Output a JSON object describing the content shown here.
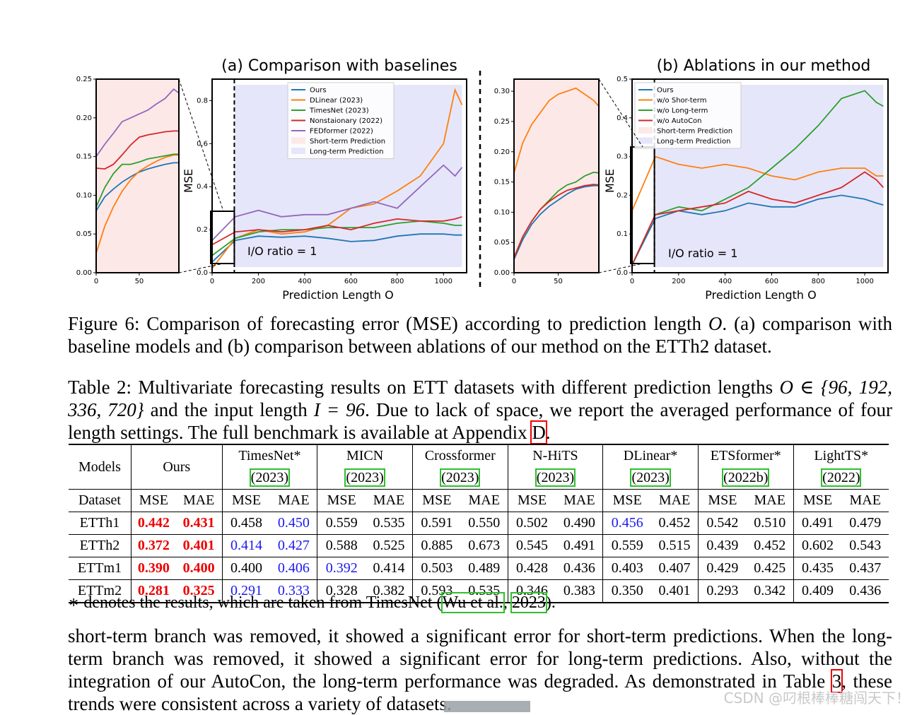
{
  "figure": {
    "title_a": "(a) Comparison with baselines",
    "title_b": "(b) Ablations in our method",
    "ylabel": "MSE",
    "xlabel": "Prediction Length O",
    "io_label": "I/O ratio = 1",
    "legend_a": [
      "Ours",
      "DLinear (2023)",
      "TimesNet (2023)",
      "Nonstaionary (2022)",
      "FEDformer (2022)",
      "Short-term Prediction",
      "Long-term Prediction"
    ],
    "legend_b": [
      "Ours",
      "w/o Shor-term",
      "w/o Long-term",
      "w/o AutoCon",
      "Short-term Prediction",
      "Long-term Prediction"
    ],
    "colors": {
      "ours": "#1f77b4",
      "dlinear": "#ff7f0e",
      "timesnet": "#2ca02c",
      "nonstat": "#d62728",
      "fedformer": "#9467bd",
      "short_bg": "#fde8e8",
      "long_bg": "#e6e6fa"
    }
  },
  "chart_data": [
    {
      "type": "line",
      "title": "(a) Comparison with baselines (zoom)",
      "xlabel": "",
      "ylabel": "",
      "xlim": [
        0,
        96
      ],
      "ylim": [
        0,
        0.25
      ],
      "xticks": [
        0,
        50
      ],
      "yticks": [
        0.0,
        0.05,
        0.1,
        0.15,
        0.2,
        0.25
      ],
      "x": [
        0,
        10,
        20,
        30,
        40,
        50,
        60,
        70,
        80,
        90,
        96
      ],
      "series": [
        {
          "name": "Ours",
          "color": "#1f77b4",
          "values": [
            0.08,
            0.098,
            0.108,
            0.117,
            0.124,
            0.13,
            0.134,
            0.137,
            0.14,
            0.142,
            0.142
          ]
        },
        {
          "name": "DLinear (2023)",
          "color": "#ff7f0e",
          "values": [
            0.025,
            0.06,
            0.085,
            0.105,
            0.12,
            0.131,
            0.138,
            0.144,
            0.149,
            0.152,
            0.152
          ]
        },
        {
          "name": "TimesNet (2023)",
          "color": "#2ca02c",
          "values": [
            0.085,
            0.11,
            0.128,
            0.14,
            0.14,
            0.143,
            0.147,
            0.149,
            0.151,
            0.153,
            0.153
          ]
        },
        {
          "name": "Nonstaionary (2022)",
          "color": "#d62728",
          "values": [
            0.135,
            0.134,
            0.14,
            0.152,
            0.165,
            0.175,
            0.178,
            0.18,
            0.182,
            0.183,
            0.183
          ]
        },
        {
          "name": "FEDformer (2022)",
          "color": "#9467bd",
          "values": [
            0.15,
            0.166,
            0.18,
            0.195,
            0.2,
            0.205,
            0.21,
            0.218,
            0.225,
            0.237,
            0.232
          ]
        }
      ]
    },
    {
      "type": "line",
      "title": "(a) Comparison with baselines",
      "xlabel": "Prediction Length O",
      "ylabel": "MSE",
      "xlim": [
        0,
        1100
      ],
      "ylim": [
        0,
        0.9
      ],
      "xticks": [
        0,
        200,
        400,
        600,
        800,
        1000
      ],
      "yticks": [
        0.0,
        0.2,
        0.4,
        0.6,
        0.8
      ],
      "x": [
        0,
        100,
        200,
        300,
        400,
        500,
        600,
        700,
        800,
        900,
        1000,
        1050,
        1080
      ],
      "series": [
        {
          "name": "Ours",
          "color": "#1f77b4",
          "values": [
            0.05,
            0.15,
            0.17,
            0.165,
            0.17,
            0.16,
            0.145,
            0.15,
            0.17,
            0.18,
            0.18,
            0.175,
            0.175
          ]
        },
        {
          "name": "DLinear (2023)",
          "color": "#ff7f0e",
          "values": [
            0.02,
            0.16,
            0.2,
            0.18,
            0.19,
            0.22,
            0.3,
            0.32,
            0.38,
            0.45,
            0.6,
            0.85,
            0.78
          ]
        },
        {
          "name": "TimesNet (2023)",
          "color": "#2ca02c",
          "values": [
            0.08,
            0.16,
            0.19,
            0.2,
            0.2,
            0.21,
            0.21,
            0.21,
            0.23,
            0.24,
            0.23,
            0.22,
            0.22
          ]
        },
        {
          "name": "Nonstaionary (2022)",
          "color": "#d62728",
          "values": [
            0.13,
            0.19,
            0.2,
            0.19,
            0.2,
            0.22,
            0.2,
            0.23,
            0.25,
            0.24,
            0.24,
            0.25,
            0.26
          ]
        },
        {
          "name": "FEDformer (2022)",
          "color": "#9467bd",
          "values": [
            0.15,
            0.26,
            0.29,
            0.26,
            0.27,
            0.27,
            0.3,
            0.33,
            0.3,
            0.4,
            0.5,
            0.45,
            0.49
          ]
        }
      ]
    },
    {
      "type": "line",
      "title": "(b) Ablations in our method (zoom)",
      "xlabel": "",
      "ylabel": "",
      "xlim": [
        0,
        96
      ],
      "ylim": [
        0,
        0.32
      ],
      "xticks": [
        0,
        50
      ],
      "yticks": [
        0.0,
        0.05,
        0.1,
        0.15,
        0.2,
        0.25,
        0.3
      ],
      "x": [
        0,
        10,
        20,
        30,
        40,
        50,
        60,
        70,
        80,
        90,
        96
      ],
      "series": [
        {
          "name": "Ours",
          "color": "#1f77b4",
          "values": [
            0.022,
            0.055,
            0.08,
            0.097,
            0.11,
            0.12,
            0.13,
            0.138,
            0.142,
            0.144,
            0.144
          ]
        },
        {
          "name": "w/o Shor-term",
          "color": "#ff7f0e",
          "values": [
            0.165,
            0.215,
            0.245,
            0.265,
            0.285,
            0.295,
            0.3,
            0.305,
            0.295,
            0.285,
            0.275
          ]
        },
        {
          "name": "w/o Long-term",
          "color": "#2ca02c",
          "values": [
            0.025,
            0.06,
            0.085,
            0.105,
            0.12,
            0.135,
            0.145,
            0.15,
            0.16,
            0.166,
            0.165
          ]
        },
        {
          "name": "w/o AutoCon",
          "color": "#d62728",
          "values": [
            0.025,
            0.06,
            0.085,
            0.105,
            0.118,
            0.128,
            0.136,
            0.14,
            0.144,
            0.146,
            0.145
          ]
        }
      ]
    },
    {
      "type": "line",
      "title": "(b) Ablations in our method",
      "xlabel": "Prediction Length O",
      "ylabel": "MSE",
      "xlim": [
        0,
        1100
      ],
      "ylim": [
        0,
        0.5
      ],
      "xticks": [
        0,
        200,
        400,
        600,
        800,
        1000
      ],
      "yticks": [
        0.0,
        0.1,
        0.2,
        0.3,
        0.4,
        0.5
      ],
      "x": [
        0,
        100,
        200,
        300,
        400,
        500,
        600,
        700,
        800,
        900,
        1000,
        1050,
        1080
      ],
      "series": [
        {
          "name": "Ours",
          "color": "#1f77b4",
          "values": [
            0.02,
            0.14,
            0.16,
            0.15,
            0.16,
            0.18,
            0.17,
            0.17,
            0.19,
            0.2,
            0.19,
            0.18,
            0.175
          ]
        },
        {
          "name": "w/o Shor-term",
          "color": "#ff7f0e",
          "values": [
            0.16,
            0.3,
            0.28,
            0.27,
            0.28,
            0.27,
            0.25,
            0.24,
            0.26,
            0.27,
            0.27,
            0.25,
            0.25
          ]
        },
        {
          "name": "w/o Long-term",
          "color": "#2ca02c",
          "values": [
            0.02,
            0.15,
            0.17,
            0.16,
            0.19,
            0.22,
            0.27,
            0.32,
            0.38,
            0.45,
            0.47,
            0.44,
            0.43
          ]
        },
        {
          "name": "w/o AutoCon",
          "color": "#d62728",
          "values": [
            0.02,
            0.15,
            0.16,
            0.17,
            0.18,
            0.21,
            0.19,
            0.18,
            0.2,
            0.22,
            0.26,
            0.24,
            0.22
          ]
        }
      ]
    }
  ],
  "caption6": {
    "part1": "Figure 6: Comparison of forecasting error (MSE) according to prediction length ",
    "var": "O",
    "part2": ". (a) comparison with baseline models and (b) comparison between ablations of our method on the ETTh2 dataset."
  },
  "table_caption": {
    "part1": "Table 2: Multivariate forecasting results on ETT datasets with different prediction lengths ",
    "math1": "O ∈ {96, 192, 336, 720}",
    "part2": " and the input length ",
    "math2": "I = 96",
    "part3": ". Due to lack of space, we report the averaged performance of four length settings. The full benchmark is available at Appendix ",
    "ref": "D",
    "part4": "."
  },
  "table": {
    "models_label": "Models",
    "dataset_label": "Dataset",
    "ours_label": "Ours",
    "models": [
      {
        "name": "TimesNet*",
        "year": "2023"
      },
      {
        "name": "MICN",
        "year": "2023"
      },
      {
        "name": "Crossformer",
        "year": "2023"
      },
      {
        "name": "N-HiTS",
        "year": "2023"
      },
      {
        "name": "DLinear*",
        "year": "2023"
      },
      {
        "name": "ETSformer*",
        "year": "2022b"
      },
      {
        "name": "LightTS*",
        "year": "2022"
      }
    ],
    "mse": "MSE",
    "mae": "MAE",
    "rows": [
      {
        "dataset": "ETTh1",
        "values": [
          "0.442",
          "0.431",
          "0.458",
          "0.450",
          "0.559",
          "0.535",
          "0.591",
          "0.550",
          "0.502",
          "0.490",
          "0.456",
          "0.452",
          "0.542",
          "0.510",
          "0.491",
          "0.479"
        ]
      },
      {
        "dataset": "ETTh2",
        "values": [
          "0.372",
          "0.401",
          "0.414",
          "0.427",
          "0.588",
          "0.525",
          "0.885",
          "0.673",
          "0.545",
          "0.491",
          "0.559",
          "0.515",
          "0.439",
          "0.452",
          "0.602",
          "0.543"
        ]
      },
      {
        "dataset": "ETTm1",
        "values": [
          "0.390",
          "0.400",
          "0.400",
          "0.406",
          "0.392",
          "0.414",
          "0.503",
          "0.489",
          "0.428",
          "0.436",
          "0.403",
          "0.407",
          "0.429",
          "0.425",
          "0.435",
          "0.437"
        ]
      },
      {
        "dataset": "ETTm2",
        "values": [
          "0.281",
          "0.325",
          "0.291",
          "0.333",
          "0.328",
          "0.382",
          "0.593",
          "0.535",
          "0.346",
          "0.383",
          "0.350",
          "0.401",
          "0.293",
          "0.342",
          "0.409",
          "0.436"
        ]
      }
    ],
    "highlight_best": [
      [
        0,
        0
      ],
      [
        0,
        1
      ],
      [
        1,
        0
      ],
      [
        1,
        1
      ],
      [
        2,
        0
      ],
      [
        2,
        1
      ],
      [
        3,
        0
      ],
      [
        3,
        1
      ]
    ],
    "highlight_second": [
      [
        0,
        3
      ],
      [
        0,
        10
      ],
      [
        1,
        2
      ],
      [
        1,
        3
      ],
      [
        2,
        3
      ],
      [
        2,
        4
      ],
      [
        3,
        2
      ],
      [
        3,
        3
      ]
    ]
  },
  "footnote": {
    "star": "∗",
    "text": " denotes the results, which are taken from TimesNet (",
    "cite1": "Wu et al.",
    "comma": ", ",
    "cite2": "2023",
    "end": ")."
  },
  "paragraph": {
    "part1": "short-term branch was removed, it showed a significant error for short-term predictions. When the long-term branch was removed, it showed a significant error for long-term predictions. Also, without the integration of our AutoCon, the long-term performance was degraded. As demonstrated in Table ",
    "ref": "3",
    "part2": ", these trends were consistent across a variety of datasets."
  },
  "watermark": "CSDN @叼根棒棒糖闯天下！"
}
